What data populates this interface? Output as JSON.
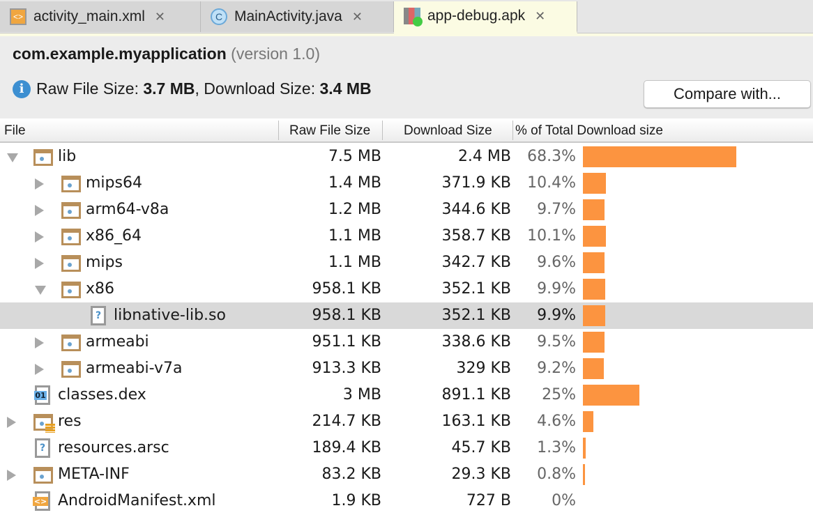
{
  "tabs": [
    {
      "label": "activity_main.xml",
      "icon": "xml-file-icon"
    },
    {
      "label": "MainActivity.java",
      "icon": "java-class-icon"
    },
    {
      "label": "app-debug.apk",
      "icon": "apk-icon",
      "active": true
    }
  ],
  "header": {
    "package": "com.example.myapplication",
    "version": "(version 1.0)",
    "raw_label": "Raw File Size: ",
    "raw_value": "3.7 MB",
    "dl_label": ", Download Size: ",
    "dl_value": "3.4 MB",
    "compare_label": "Compare with..."
  },
  "columns": {
    "file": "File",
    "raw": "Raw File Size",
    "download": "Download Size",
    "percent": "% of Total Download size"
  },
  "bar_color": "#fc9440",
  "rows": [
    {
      "name": "lib",
      "depth": 0,
      "expander": "expanded",
      "icon": "folder",
      "raw": "7.5 MB",
      "download": "2.4 MB",
      "percent": "68.3%",
      "value": 68.3
    },
    {
      "name": "mips64",
      "depth": 1,
      "expander": "collapsed",
      "icon": "folder",
      "raw": "1.4 MB",
      "download": "371.9 KB",
      "percent": "10.4%",
      "value": 10.4
    },
    {
      "name": "arm64-v8a",
      "depth": 1,
      "expander": "collapsed",
      "icon": "folder",
      "raw": "1.2 MB",
      "download": "344.6 KB",
      "percent": "9.7%",
      "value": 9.7
    },
    {
      "name": "x86_64",
      "depth": 1,
      "expander": "collapsed",
      "icon": "folder",
      "raw": "1.1 MB",
      "download": "358.7 KB",
      "percent": "10.1%",
      "value": 10.1
    },
    {
      "name": "mips",
      "depth": 1,
      "expander": "collapsed",
      "icon": "folder",
      "raw": "1.1 MB",
      "download": "342.7 KB",
      "percent": "9.6%",
      "value": 9.6
    },
    {
      "name": "x86",
      "depth": 1,
      "expander": "expanded",
      "icon": "folder",
      "raw": "958.1 KB",
      "download": "352.1 KB",
      "percent": "9.9%",
      "value": 9.9
    },
    {
      "name": "libnative-lib.so",
      "depth": 2,
      "expander": "none",
      "icon": "unknown",
      "raw": "958.1 KB",
      "download": "352.1 KB",
      "percent": "9.9%",
      "value": 9.9,
      "selected": true
    },
    {
      "name": "armeabi",
      "depth": 1,
      "expander": "collapsed",
      "icon": "folder",
      "raw": "951.1 KB",
      "download": "338.6 KB",
      "percent": "9.5%",
      "value": 9.5
    },
    {
      "name": "armeabi-v7a",
      "depth": 1,
      "expander": "collapsed",
      "icon": "folder",
      "raw": "913.3 KB",
      "download": "329 KB",
      "percent": "9.2%",
      "value": 9.2
    },
    {
      "name": "classes.dex",
      "depth": 0,
      "expander": "none",
      "icon": "dex",
      "raw": "3 MB",
      "download": "891.1 KB",
      "percent": "25%",
      "value": 25
    },
    {
      "name": "res",
      "depth": 0,
      "expander": "collapsed",
      "icon": "res-folder",
      "raw": "214.7 KB",
      "download": "163.1 KB",
      "percent": "4.6%",
      "value": 4.6
    },
    {
      "name": "resources.arsc",
      "depth": 0,
      "expander": "none",
      "icon": "unknown",
      "raw": "189.4 KB",
      "download": "45.7 KB",
      "percent": "1.3%",
      "value": 1.3
    },
    {
      "name": "META-INF",
      "depth": 0,
      "expander": "collapsed",
      "icon": "folder",
      "raw": "83.2 KB",
      "download": "29.3 KB",
      "percent": "0.8%",
      "value": 0.8
    },
    {
      "name": "AndroidManifest.xml",
      "depth": 0,
      "expander": "none",
      "icon": "xml",
      "raw": "1.9 KB",
      "download": "727 B",
      "percent": "0%",
      "value": 0
    }
  ]
}
